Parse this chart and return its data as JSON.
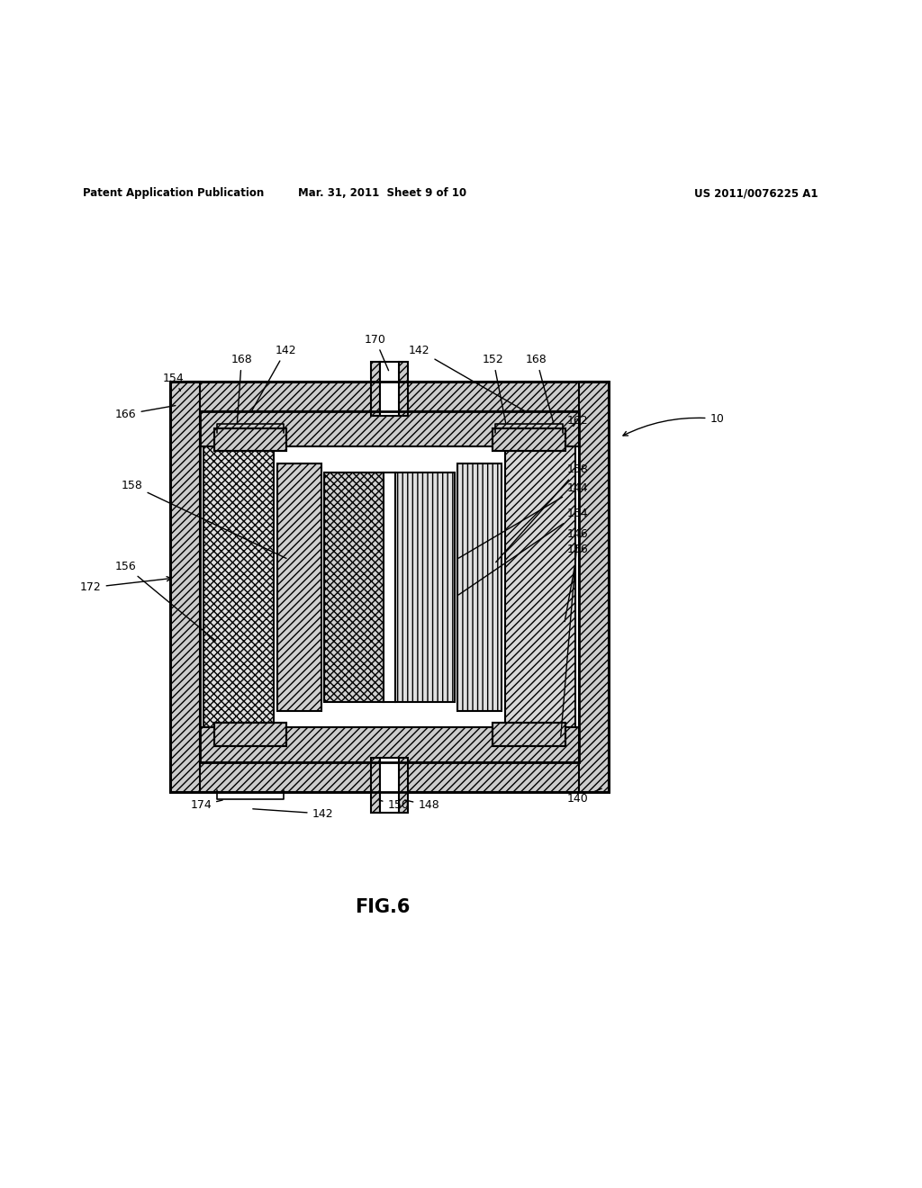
{
  "header_left": "Patent Application Publication",
  "header_mid": "Mar. 31, 2011  Sheet 9 of 10",
  "header_right": "US 2011/0076225 A1",
  "fig_label": "FIG.6",
  "background": "#ffffff",
  "line_color": "#000000",
  "ox1": 0.185,
  "ox2": 0.66,
  "oy1": 0.285,
  "oy2": 0.73,
  "wall_t": 0.032,
  "fs": 9
}
